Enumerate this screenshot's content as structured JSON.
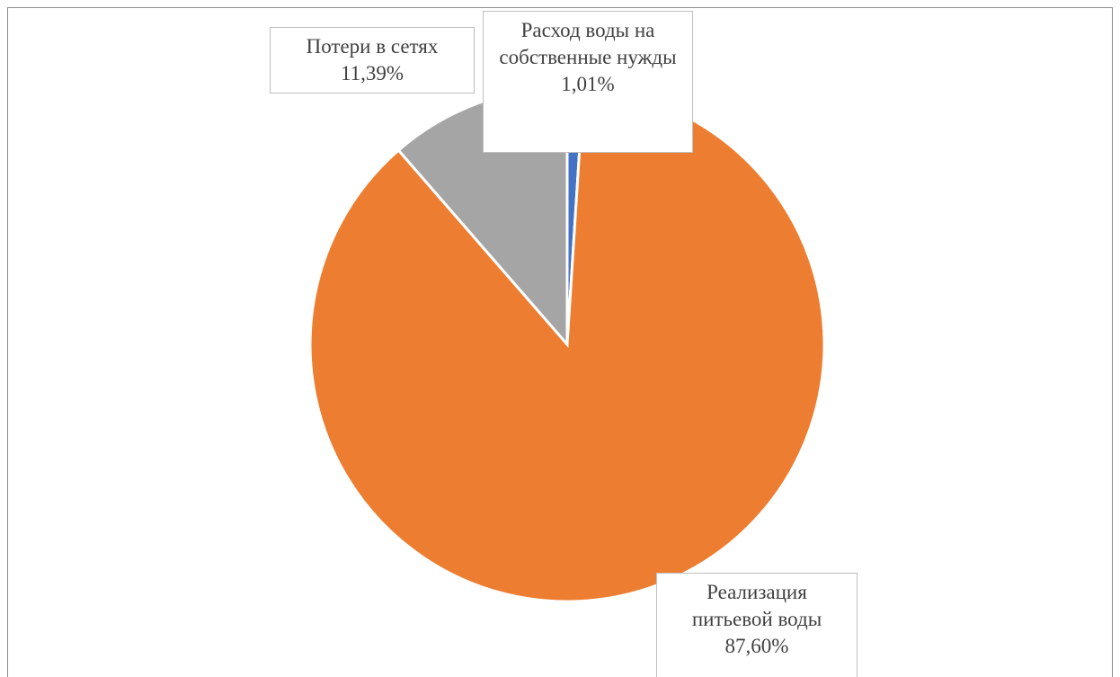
{
  "chart_data": {
    "type": "pie",
    "categories": [
      "Расход воды на собственные нужды",
      "Реализация питьевой воды",
      "Потери в сетях"
    ],
    "values": [
      1.01,
      87.6,
      11.39
    ],
    "value_labels": [
      "1,01%",
      "87,60%",
      "11,39%"
    ],
    "colors": [
      "#4472c4",
      "#ed7d31",
      "#a5a5a5"
    ]
  }
}
